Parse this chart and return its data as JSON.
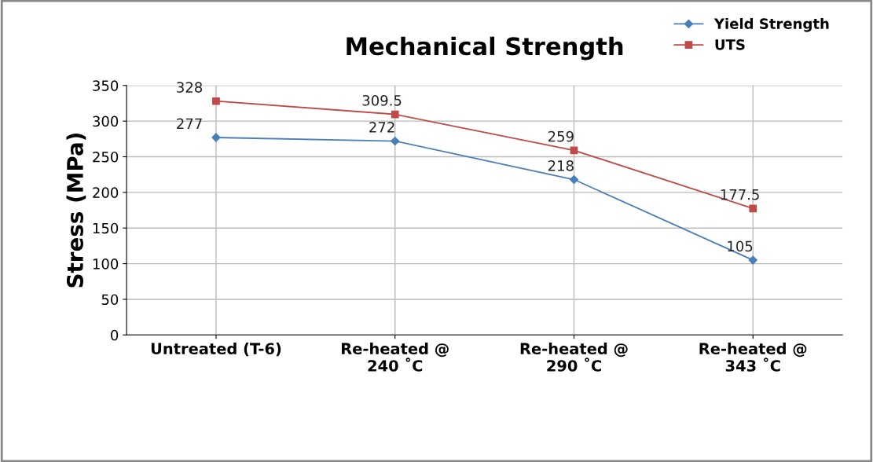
{
  "chart_data": {
    "type": "line",
    "title": "Mechanical Strength",
    "ylabel": "Stress (MPa)",
    "categories": [
      "Untreated (T-6)",
      "Re-heated @\n240 ˚C",
      "Re-heated @\n290 ˚C",
      "Re-heated @\n343 ˚C"
    ],
    "series": [
      {
        "name": "Yield Strength",
        "color": "#4a7ebb",
        "marker": "diamond",
        "values": [
          277,
          272,
          218,
          105
        ]
      },
      {
        "name": "UTS",
        "color": "#be4b48",
        "marker": "square",
        "values": [
          328,
          309.5,
          259,
          177.5
        ]
      }
    ],
    "ylim": [
      0,
      350
    ],
    "yticks": [
      0,
      50,
      100,
      150,
      200,
      250,
      300,
      350
    ],
    "grid": true,
    "legend": "top right",
    "data_labels": true
  }
}
